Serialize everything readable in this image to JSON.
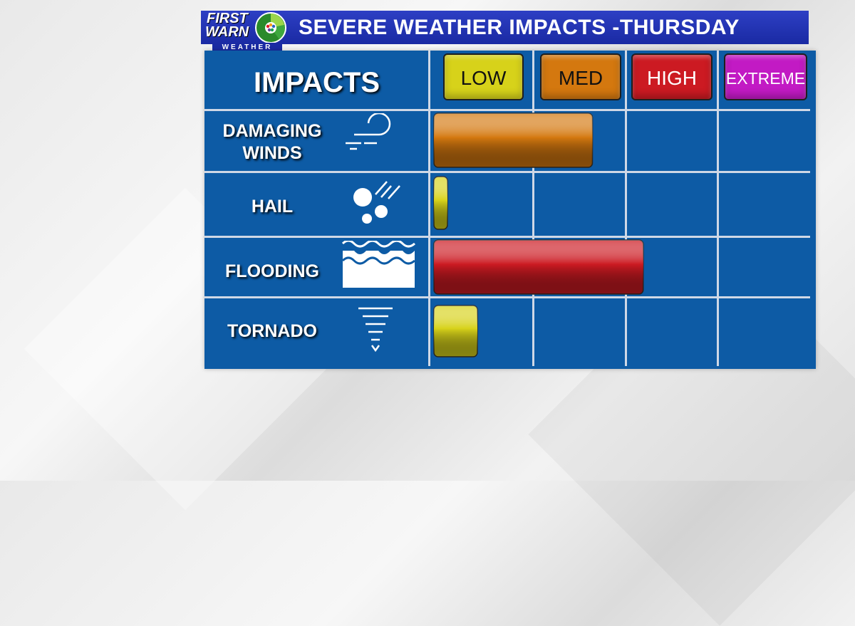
{
  "header": {
    "title": "SEVERE WEATHER IMPACTS -THURSDAY",
    "logo_first": "FIRST",
    "logo_warn": "WARN",
    "logo_weather": "WEATHER"
  },
  "table": {
    "heading": "IMPACTS",
    "levels": [
      {
        "label": "LOW",
        "color": "#d7d21a",
        "text_color": "#111111"
      },
      {
        "label": "MED",
        "color": "#d4780f",
        "text_color": "#111111"
      },
      {
        "label": "HIGH",
        "color": "#cc1a22",
        "text_color": "#ffffff"
      },
      {
        "label": "EXTREME",
        "color": "#c21ac4",
        "text_color": "#ffffff"
      }
    ],
    "rows": [
      {
        "label_line1": "DAMAGING",
        "label_line2": "WINDS",
        "icon": "wind-icon"
      },
      {
        "label_line1": "HAIL",
        "label_line2": "",
        "icon": "hail-icon"
      },
      {
        "label_line1": "FLOODING",
        "label_line2": "",
        "icon": "flood-icon"
      },
      {
        "label_line1": "TORNADO",
        "label_line2": "",
        "icon": "tornado-icon"
      }
    ]
  },
  "chart_data": {
    "type": "bar",
    "orientation": "horizontal",
    "title": "SEVERE WEATHER IMPACTS -THURSDAY",
    "categories": [
      "DAMAGING WINDS",
      "HAIL",
      "FLOODING",
      "TORNADO"
    ],
    "scale_levels": [
      "LOW",
      "MED",
      "HIGH",
      "EXTREME"
    ],
    "values": [
      1.65,
      0.15,
      2.2,
      0.45
    ],
    "bar_colors": [
      "#d4780f",
      "#d7d21a",
      "#cc1a22",
      "#d7d21a"
    ],
    "xlim": [
      0,
      4
    ],
    "grid": true
  }
}
